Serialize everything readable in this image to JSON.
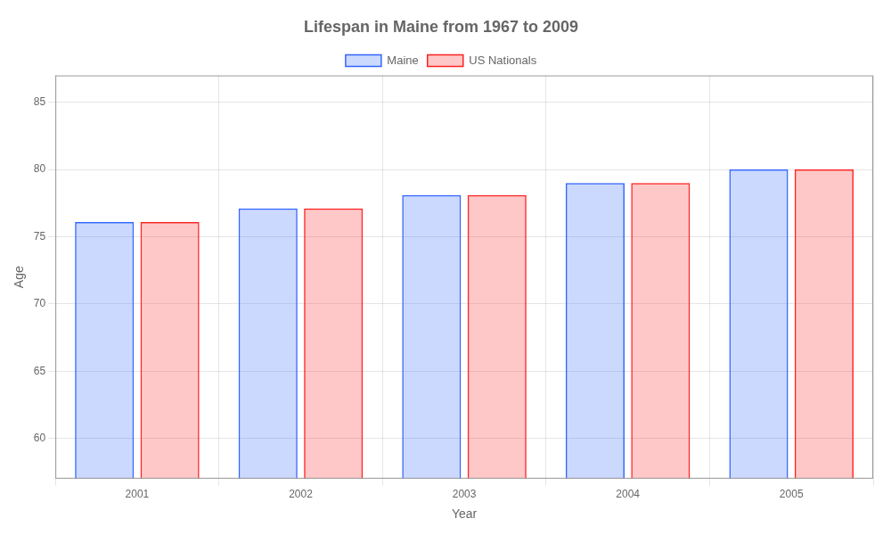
{
  "chart_data": {
    "type": "bar",
    "title": "Lifespan in Maine from 1967 to 2009",
    "xlabel": "Year",
    "ylabel": "Age",
    "categories": [
      "2001",
      "2002",
      "2003",
      "2004",
      "2005"
    ],
    "series": [
      {
        "name": "Maine",
        "color": "#3366ff",
        "values": [
          76.1,
          77.1,
          78.1,
          79.0,
          80.0
        ]
      },
      {
        "name": "US Nationals",
        "color": "#ff2222",
        "values": [
          76.1,
          77.1,
          78.1,
          79.0,
          80.0
        ]
      }
    ],
    "ylim": [
      57,
      87
    ],
    "yticks": [
      60,
      65,
      70,
      75,
      80,
      85
    ],
    "grid": true,
    "legend": "top"
  }
}
